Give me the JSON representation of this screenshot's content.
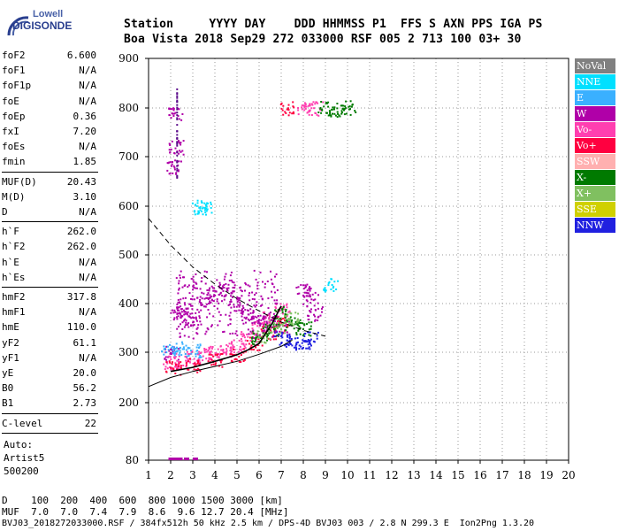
{
  "logo": {
    "top": "Lowell",
    "bottom": "DIGISONDE"
  },
  "header": {
    "line1": "Station     YYYY DAY    DDD HHMMSS P1  FFS S AXN PPS IGA PS",
    "line2": "Boa Vista 2018 Sep29 272 033000 RSF 005 2 713 100 03+ 30"
  },
  "params": {
    "group1": [
      {
        "name": "foF2",
        "value": "6.600"
      },
      {
        "name": "foF1",
        "value": "N/A"
      },
      {
        "name": "foF1p",
        "value": "N/A"
      },
      {
        "name": "foE",
        "value": "N/A"
      },
      {
        "name": "foEp",
        "value": "0.36"
      },
      {
        "name": "fxI",
        "value": "7.20"
      },
      {
        "name": "foEs",
        "value": "N/A"
      },
      {
        "name": "fmin",
        "value": "1.85"
      }
    ],
    "group2": [
      {
        "name": "MUF(D)",
        "value": "20.43"
      },
      {
        "name": "M(D)",
        "value": "3.10"
      },
      {
        "name": "D",
        "value": "N/A"
      }
    ],
    "group3": [
      {
        "name": "h`F",
        "value": "262.0"
      },
      {
        "name": "h`F2",
        "value": "262.0"
      },
      {
        "name": "h`E",
        "value": "N/A"
      },
      {
        "name": "h`Es",
        "value": "N/A"
      }
    ],
    "group4": [
      {
        "name": "hmF2",
        "value": "317.8"
      },
      {
        "name": "hmF1",
        "value": "N/A"
      },
      {
        "name": "hmE",
        "value": "110.0"
      },
      {
        "name": "yF2",
        "value": "61.1"
      },
      {
        "name": "yF1",
        "value": "N/A"
      },
      {
        "name": "yE",
        "value": "20.0"
      },
      {
        "name": "B0",
        "value": "56.2"
      },
      {
        "name": "B1",
        "value": "2.73"
      }
    ],
    "group5": [
      {
        "name": "C-level",
        "value": "22"
      }
    ],
    "auto": [
      "Auto:",
      "Artist5",
      "500200"
    ]
  },
  "legend": [
    {
      "label": "NoVal",
      "color": "#808080"
    },
    {
      "label": "NNE",
      "color": "#00e0ff"
    },
    {
      "label": "E",
      "color": "#3ab0ff"
    },
    {
      "label": "W",
      "color": "#b000a8"
    },
    {
      "label": "Vo-",
      "color": "#ff3fb0"
    },
    {
      "label": "Vo+",
      "color": "#ff0040"
    },
    {
      "label": "SSW",
      "color": "#ffb0b0"
    },
    {
      "label": "X-",
      "color": "#007a00"
    },
    {
      "label": "X+",
      "color": "#80c060"
    },
    {
      "label": "SSE",
      "color": "#d0d000"
    },
    {
      "label": "NNW",
      "color": "#2020e0"
    }
  ],
  "footer": {
    "d_line": "D    100  200  400  600  800 1000 1500 3000 [km]",
    "muf_line": "MUF  7.0  7.0  7.4  7.9  8.6  9.6 12.7 20.4 [MHz]",
    "file_line": "BVJ03_2018272033000.RSF / 384fx512h 50 kHz 2.5 km / DPS-4D BVJ03 003 / 2.8 N 299.3 E  Ion2Png 1.3.20"
  },
  "chart_data": {
    "type": "scatter",
    "x_ticks": [
      1,
      2,
      3,
      4,
      5,
      6,
      7,
      8,
      9,
      10,
      11,
      12,
      13,
      14,
      15,
      16,
      17,
      18,
      19,
      20
    ],
    "y_ticks": [
      80,
      200,
      300,
      400,
      500,
      600,
      700,
      800,
      900
    ],
    "xlim": [
      1,
      20
    ],
    "ylim": [
      80,
      900
    ],
    "grid": "dotted",
    "legend_position": "right",
    "series": [
      {
        "name": "W",
        "color": "#b000a8",
        "points": [
          [
            2.0,
            300
          ],
          [
            2.3,
            380
          ],
          [
            2.6,
            390
          ],
          [
            3.0,
            370
          ],
          [
            3.5,
            410
          ],
          [
            4.0,
            420
          ],
          [
            4.5,
            430
          ],
          [
            5.0,
            400
          ],
          [
            5.5,
            380
          ],
          [
            6.0,
            370
          ],
          [
            6.5,
            360
          ],
          [
            7.0,
            350
          ],
          [
            2.2,
            790
          ],
          [
            2.2,
            720
          ],
          [
            2.1,
            680
          ],
          [
            8.0,
            430
          ],
          [
            8.3,
            410
          ],
          [
            8.5,
            380
          ]
        ]
      },
      {
        "name": "Vo-",
        "color": "#ff3fb0",
        "points": [
          [
            2.0,
            280
          ],
          [
            2.5,
            285
          ],
          [
            3.0,
            290
          ],
          [
            3.5,
            295
          ],
          [
            4.0,
            300
          ],
          [
            4.5,
            305
          ],
          [
            5.0,
            315
          ],
          [
            5.5,
            330
          ],
          [
            6.0,
            350
          ],
          [
            6.5,
            370
          ],
          [
            7.0,
            390
          ],
          [
            8.0,
            800
          ],
          [
            8.5,
            800
          ]
        ]
      },
      {
        "name": "Vo+",
        "color": "#ff0040",
        "points": [
          [
            2.1,
            270
          ],
          [
            3.0,
            275
          ],
          [
            4.0,
            285
          ],
          [
            5.0,
            295
          ],
          [
            5.8,
            320
          ],
          [
            6.4,
            340
          ],
          [
            7.0,
            360
          ],
          [
            7.3,
            800
          ]
        ]
      },
      {
        "name": "X-",
        "color": "#007a00",
        "points": [
          [
            6.0,
            330
          ],
          [
            6.5,
            345
          ],
          [
            7.0,
            380
          ],
          [
            7.5,
            360
          ],
          [
            8.0,
            350
          ],
          [
            9.0,
            800
          ],
          [
            9.5,
            798
          ],
          [
            10.0,
            802
          ]
        ]
      },
      {
        "name": "X+",
        "color": "#80c060",
        "points": [
          [
            6.2,
            335
          ],
          [
            6.8,
            355
          ],
          [
            7.4,
            370
          ]
        ]
      },
      {
        "name": "NNE",
        "color": "#00e0ff",
        "points": [
          [
            3.3,
            598
          ],
          [
            3.5,
            600
          ],
          [
            9.2,
            440
          ]
        ]
      },
      {
        "name": "NNW",
        "color": "#2020e0",
        "points": [
          [
            7.0,
            330
          ],
          [
            7.5,
            320
          ],
          [
            8.0,
            320
          ],
          [
            8.3,
            330
          ]
        ]
      },
      {
        "name": "E",
        "color": "#3ab0ff",
        "points": [
          [
            1.9,
            305
          ],
          [
            2.4,
            310
          ],
          [
            3.0,
            305
          ]
        ]
      }
    ],
    "profile_curve": [
      [
        2.0,
        262
      ],
      [
        3,
        270
      ],
      [
        4,
        282
      ],
      [
        5,
        295
      ],
      [
        5.5,
        305
      ],
      [
        6,
        318
      ],
      [
        6.6,
        360
      ],
      [
        7.0,
        395
      ]
    ],
    "lower_curve": [
      [
        1.0,
        232
      ],
      [
        2,
        250
      ],
      [
        3,
        262
      ],
      [
        4,
        272
      ],
      [
        5,
        282
      ],
      [
        6,
        296
      ],
      [
        7,
        312
      ],
      [
        7.5,
        325
      ]
    ],
    "dashed_curve": [
      [
        1.0,
        575
      ],
      [
        2,
        520
      ],
      [
        3,
        475
      ],
      [
        4,
        440
      ],
      [
        5,
        410
      ],
      [
        6,
        385
      ],
      [
        7,
        362
      ],
      [
        8,
        345
      ],
      [
        9,
        333
      ]
    ]
  }
}
